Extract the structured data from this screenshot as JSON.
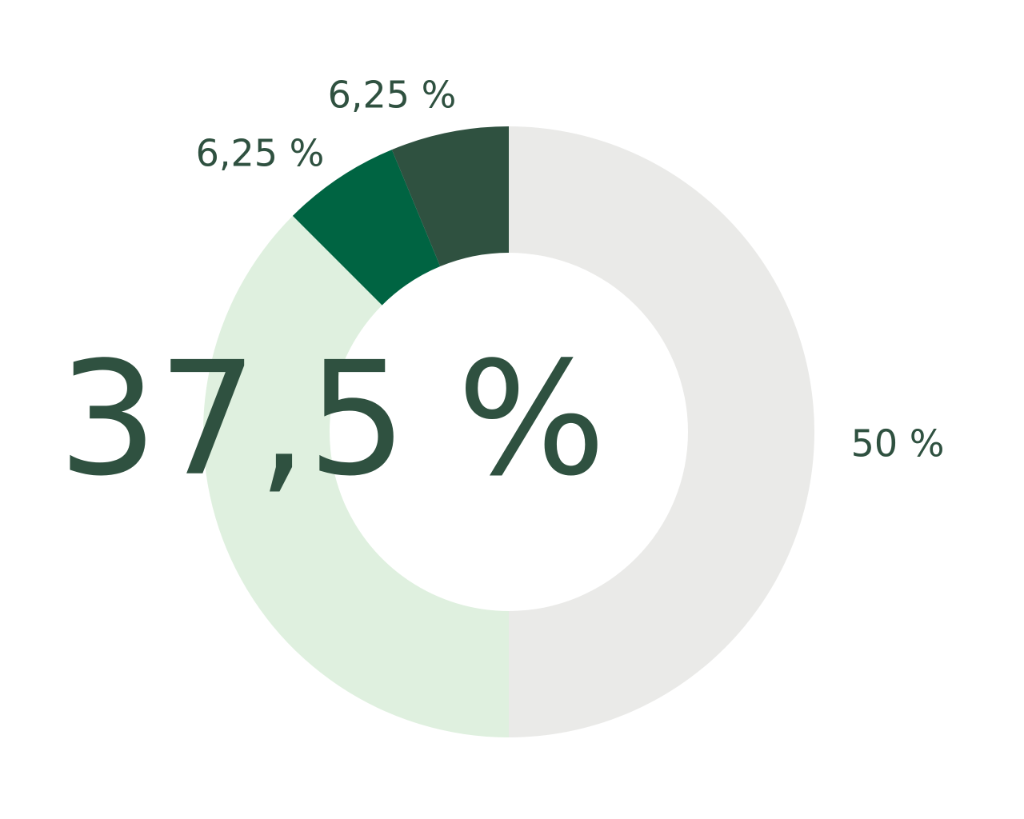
{
  "chart_data": {
    "type": "donut",
    "values": [
      50,
      37.5,
      6.25,
      6.25
    ],
    "value_labels": [
      "50 %",
      "37,5 %",
      "6,25 %",
      "6,25 %"
    ],
    "colors": [
      "#eaeae8",
      "#dff0df",
      "#006442",
      "#2f5140"
    ]
  }
}
